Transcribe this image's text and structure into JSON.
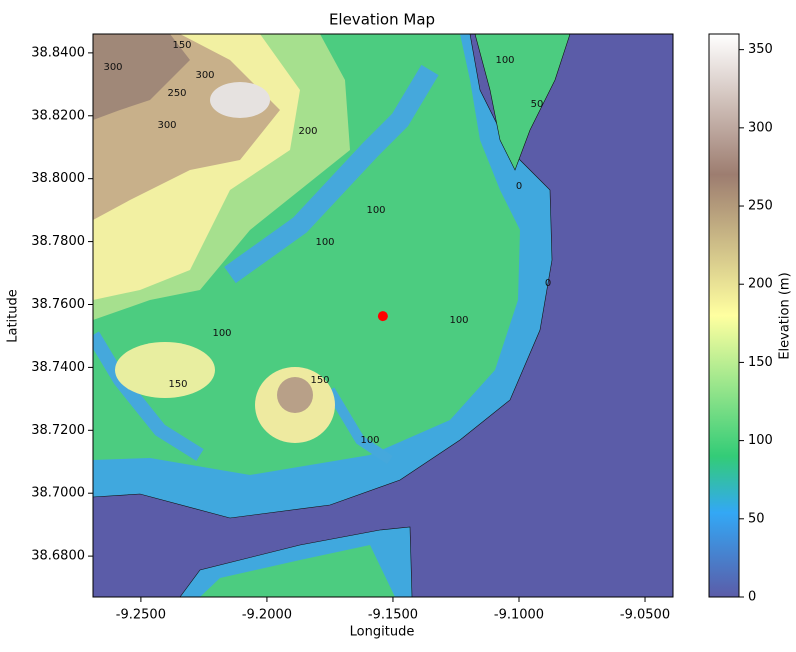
{
  "chart_data": {
    "type": "map",
    "title": "Elevation Map",
    "x_label": "Longitude",
    "y_label": "Latitude",
    "xlim": [
      -9.269,
      -9.0389
    ],
    "ylim": [
      38.667,
      38.846
    ],
    "xticks": [
      {
        "value": -9.25,
        "label": "-9.2500"
      },
      {
        "value": -9.2,
        "label": "-9.2000"
      },
      {
        "value": -9.15,
        "label": "-9.1500"
      },
      {
        "value": -9.1,
        "label": "-9.1000"
      },
      {
        "value": -9.05,
        "label": "-9.0500"
      }
    ],
    "yticks": [
      {
        "value": 38.68,
        "label": "38.6800"
      },
      {
        "value": 38.7,
        "label": "38.7000"
      },
      {
        "value": 38.72,
        "label": "38.7200"
      },
      {
        "value": 38.74,
        "label": "38.7400"
      },
      {
        "value": 38.76,
        "label": "38.7600"
      },
      {
        "value": 38.78,
        "label": "38.7800"
      },
      {
        "value": 38.8,
        "label": "38.8000"
      },
      {
        "value": 38.82,
        "label": "38.8200"
      },
      {
        "value": 38.84,
        "label": "38.8400"
      }
    ],
    "points": {
      "x": [
        -9.154
      ],
      "y": [
        38.7563
      ],
      "color": "#ff0000"
    },
    "contour_labels": [
      150,
      300,
      250,
      300,
      300,
      200,
      0,
      100,
      100,
      100,
      150,
      150,
      100,
      100,
      100,
      50,
      0
    ],
    "colorbar": {
      "label": "Elevation (m)",
      "colormap": "terrain",
      "lim": [
        0,
        360
      ],
      "ticks": [
        0,
        50,
        100,
        150,
        200,
        250,
        300,
        350
      ]
    }
  }
}
